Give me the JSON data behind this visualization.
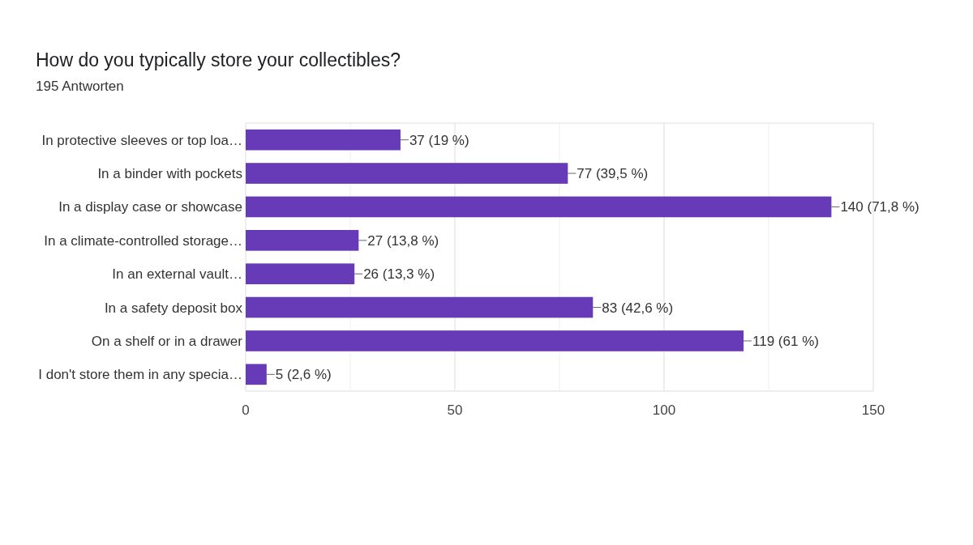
{
  "chart_data": {
    "type": "bar",
    "orientation": "horizontal",
    "title": "How do you typically store your collectibles?",
    "subtitle": "195 Antworten",
    "categories": [
      "In protective sleeves or top loa…",
      "In a binder with pockets",
      "In a display case or showcase",
      "In a climate-controlled storage…",
      "In an external vault…",
      "In a safety deposit box",
      "On a shelf or in a drawer",
      "I don't store them in any specia…"
    ],
    "values": [
      37,
      77,
      140,
      27,
      26,
      83,
      119,
      5
    ],
    "value_labels": [
      "37 (19 %)",
      "77 (39,5 %)",
      "140 (71,8 %)",
      "27 (13,8 %)",
      "26 (13,3 %)",
      "83 (42,6 %)",
      "119 (61 %)",
      "5 (2,6 %)"
    ],
    "color": "#673ab7",
    "xlim": [
      0,
      150
    ],
    "xticks": [
      0,
      {
        "value": 25,
        "label": null
      },
      50,
      {
        "value": 75,
        "label": null
      },
      100,
      {
        "value": 125,
        "label": null
      },
      150
    ],
    "grid": "x"
  }
}
